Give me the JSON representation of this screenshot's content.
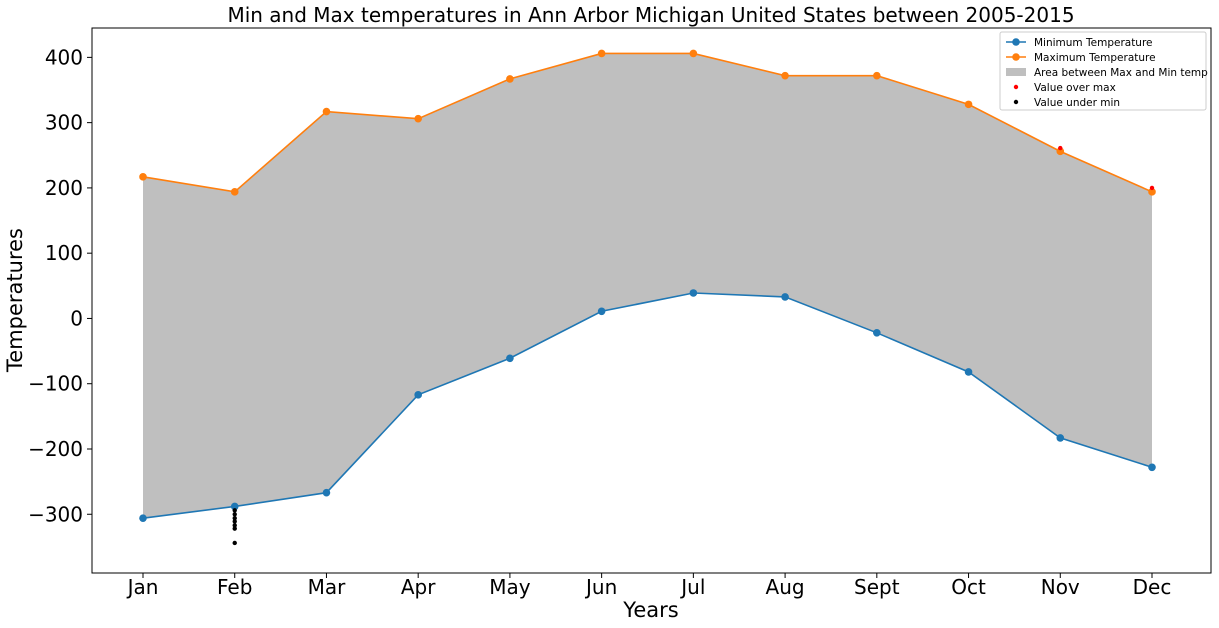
{
  "chart_data": {
    "type": "line",
    "title": "Min and Max temperatures in Ann Arbor Michigan United States between 2005-2015",
    "xlabel": "Years",
    "ylabel": "Temperatures",
    "categories": [
      "Jan",
      "Feb",
      "Mar",
      "Apr",
      "May",
      "Jun",
      "Jul",
      "Aug",
      "Sept",
      "Oct",
      "Nov",
      "Dec"
    ],
    "ylim": [
      -390,
      445
    ],
    "yticks": [
      -300,
      -200,
      -100,
      0,
      100,
      200,
      300,
      400
    ],
    "ytick_labels": [
      "−300",
      "−200",
      "−100",
      "0",
      "100",
      "200",
      "300",
      "400"
    ],
    "grid": false,
    "legend_position": "top-right",
    "series": [
      {
        "name": "Minimum Temperature",
        "color": "#1f77b4",
        "values": [
          -306,
          -288,
          -267,
          -117,
          -61,
          11,
          39,
          33,
          -22,
          -82,
          -183,
          -228
        ]
      },
      {
        "name": "Maximum Temperature",
        "color": "#ff7f0e",
        "values": [
          217,
          194,
          317,
          306,
          367,
          406,
          406,
          372,
          372,
          328,
          256,
          194
        ]
      }
    ],
    "fill_between": {
      "name": "Area between Max and Min temp",
      "color": "#bfbfbf"
    },
    "scatter": [
      {
        "name": "Value over max",
        "color": "#ff0000",
        "points": [
          {
            "x": "Nov",
            "y": 261
          },
          {
            "x": "Dec",
            "y": 200
          }
        ]
      },
      {
        "name": "Value under min",
        "color": "#000000",
        "points": [
          {
            "x": "Feb",
            "y": -294
          },
          {
            "x": "Feb",
            "y": -300
          },
          {
            "x": "Feb",
            "y": -306
          },
          {
            "x": "Feb",
            "y": -311
          },
          {
            "x": "Feb",
            "y": -317
          },
          {
            "x": "Feb",
            "y": -322
          },
          {
            "x": "Feb",
            "y": -344
          }
        ]
      }
    ]
  }
}
